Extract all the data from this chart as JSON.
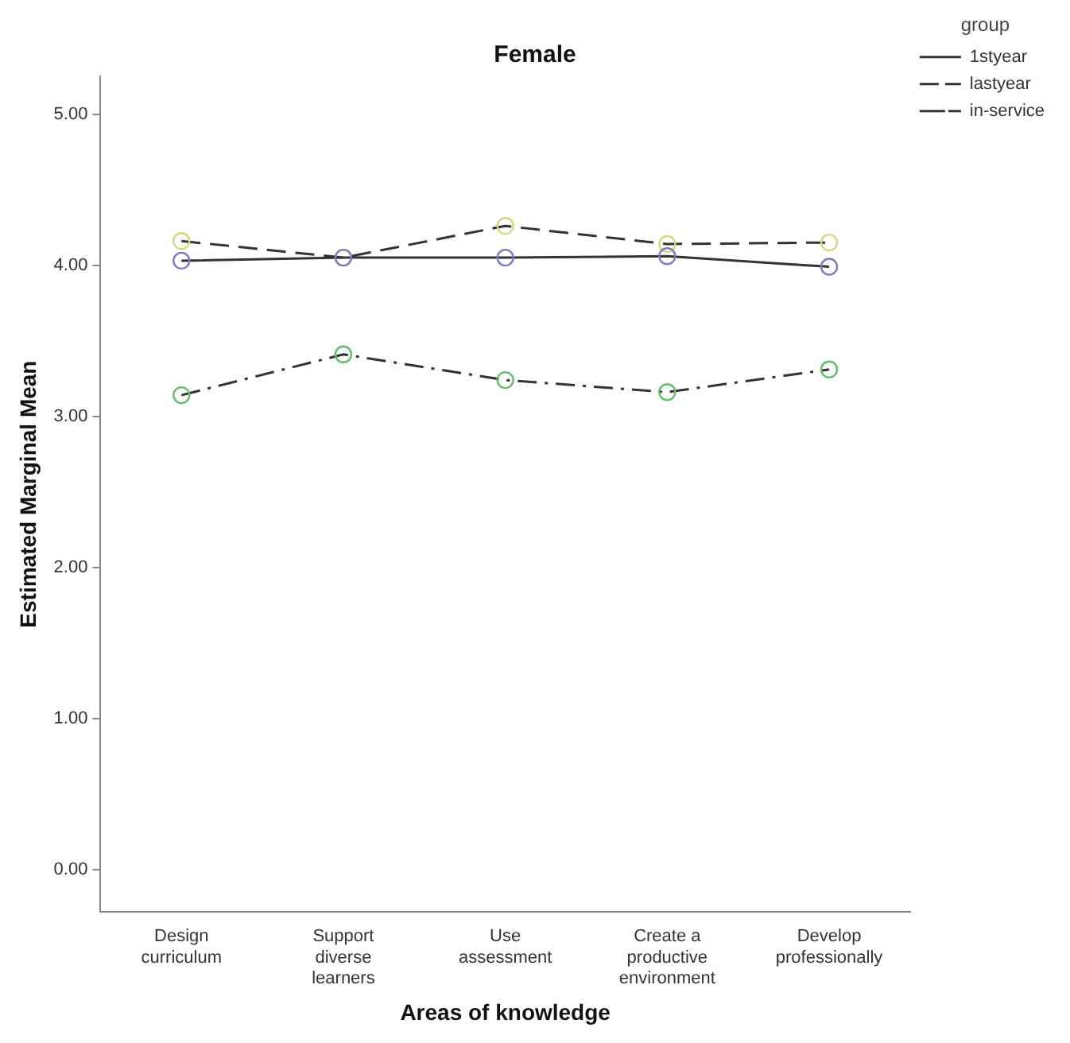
{
  "chart_data": {
    "type": "line",
    "title": "Female",
    "xlabel": "Areas of knowledge",
    "ylabel": "Estimated Marginal Mean",
    "legend_title": "group",
    "categories": [
      "Design curriculum",
      "Support diverse learners",
      "Use assessment",
      "Create a productive environment",
      "Develop professionally"
    ],
    "series": [
      {
        "name": "1styear",
        "color": "#7b7bc8",
        "line_style": "solid",
        "values": [
          4.03,
          4.05,
          4.05,
          4.06,
          3.99
        ]
      },
      {
        "name": "lastyear",
        "color": "#5fbf6a",
        "line_style": "dashdot",
        "values": [
          3.14,
          3.41,
          3.24,
          3.16,
          3.31
        ]
      },
      {
        "name": "in-service",
        "color": "#d8d87a",
        "line_style": "dashed",
        "values": [
          4.16,
          4.05,
          4.26,
          4.14,
          4.15
        ]
      }
    ],
    "ylim": [
      -0.28,
      5.25
    ],
    "yticks": [
      {
        "value": 0,
        "label": "0.00"
      },
      {
        "value": 1,
        "label": "1.00"
      },
      {
        "value": 2,
        "label": "2.00"
      },
      {
        "value": 3,
        "label": "3.00"
      },
      {
        "value": 4,
        "label": "4.00"
      },
      {
        "value": 5,
        "label": "5.00"
      }
    ],
    "grid": false,
    "legend": "top right",
    "marker": "circle"
  }
}
